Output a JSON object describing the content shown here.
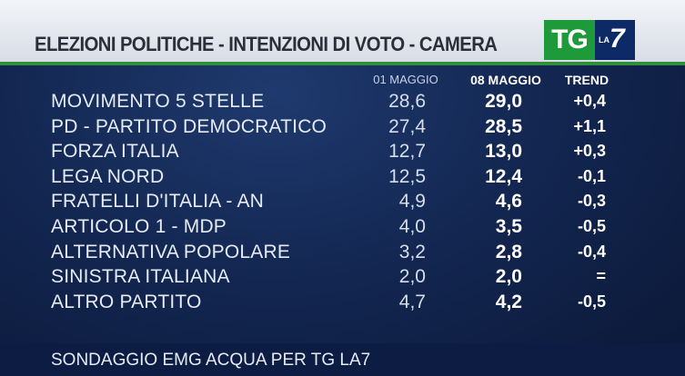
{
  "header": {
    "title": "ELEZIONI POLITICHE - INTENZIONI DI VOTO - CAMERA"
  },
  "logo": {
    "tg": "TG",
    "la": "LA",
    "seven": "7"
  },
  "columns": {
    "col1": "01 MAGGIO",
    "col2": "08 MAGGIO",
    "col3": "TREND"
  },
  "rows": [
    {
      "party": "MOVIMENTO 5 STELLE",
      "v1": "28,6",
      "v2": "29,0",
      "trend": "+0,4"
    },
    {
      "party": "PD - PARTITO DEMOCRATICO",
      "v1": "27,4",
      "v2": "28,5",
      "trend": "+1,1"
    },
    {
      "party": "FORZA ITALIA",
      "v1": "12,7",
      "v2": "13,0",
      "trend": "+0,3"
    },
    {
      "party": "LEGA NORD",
      "v1": "12,5",
      "v2": "12,4",
      "trend": "-0,1"
    },
    {
      "party": "FRATELLI D'ITALIA - AN",
      "v1": "4,9",
      "v2": "4,6",
      "trend": "-0,3"
    },
    {
      "party": "ARTICOLO 1 - MDP",
      "v1": "4,0",
      "v2": "3,5",
      "trend": "-0,5"
    },
    {
      "party": "ALTERNATIVA POPOLARE",
      "v1": "3,2",
      "v2": "2,8",
      "trend": "-0,4"
    },
    {
      "party": "SINISTRA ITALIANA",
      "v1": "2,0",
      "v2": "2,0",
      "trend": "="
    },
    {
      "party": "ALTRO PARTITO",
      "v1": "4,7",
      "v2": "4,2",
      "trend": "-0,5"
    }
  ],
  "footer": {
    "source": "SONDAGGIO EMG ACQUA PER TG LA7"
  },
  "colors": {
    "background": "#132752",
    "header": "#e6e9ef",
    "accent_green": "#2f8f3a",
    "logo_tg": "#1f9a3a",
    "logo_la7": "#0d2a66"
  }
}
